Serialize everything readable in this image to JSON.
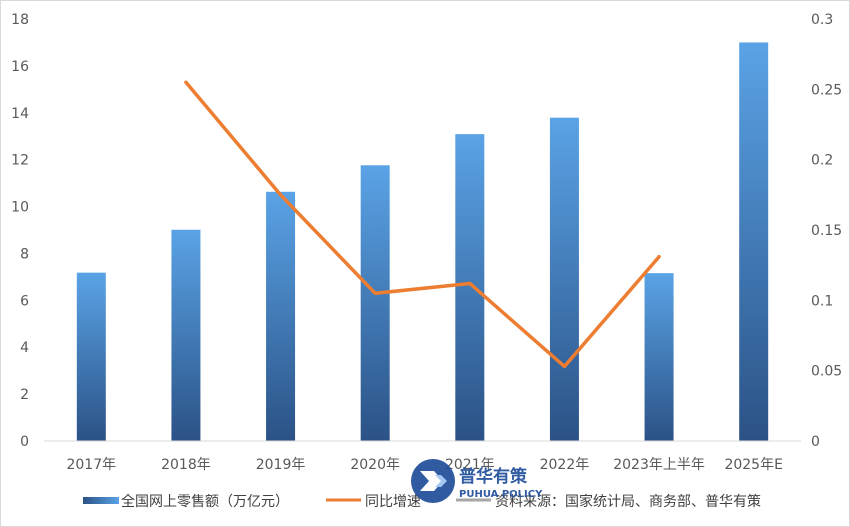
{
  "chart_data": {
    "type": "bar",
    "categories": [
      "2017年",
      "2018年",
      "2019年",
      "2020年",
      "2021年",
      "2022年",
      "2023年上半年",
      "2025年E"
    ],
    "series": [
      {
        "name": "全国网上零售额（万亿元）",
        "type": "bar",
        "axis": "left",
        "values": [
          7.18,
          9.01,
          10.63,
          11.76,
          13.09,
          13.79,
          7.16,
          17.0
        ]
      },
      {
        "name": "同比增速",
        "type": "line",
        "axis": "right",
        "values": [
          null,
          0.255,
          0.175,
          0.105,
          0.112,
          0.053,
          0.131,
          null
        ]
      }
    ],
    "source_label": "资料来源：国家统计局、商务部、普华有策",
    "y_left": {
      "min": 0,
      "max": 18,
      "ticks": [
        "0",
        "2",
        "4",
        "6",
        "8",
        "10",
        "12",
        "14",
        "16",
        "18"
      ]
    },
    "y_right": {
      "min": 0,
      "max": 0.3,
      "ticks": [
        "0",
        "0.05",
        "0.1",
        "0.15",
        "0.2",
        "0.25",
        "0.3"
      ]
    },
    "grid": false,
    "legend_position": "bottom",
    "colors": {
      "bar_top": "#5aa3e6",
      "bar_bottom": "#2b5286",
      "line": "#ed7d31",
      "source_line": "#a6a6a6",
      "axis": "#d9d9d9"
    }
  },
  "watermark": {
    "name_cn": "普华有策",
    "name_en": "PUHUA POLICY"
  }
}
